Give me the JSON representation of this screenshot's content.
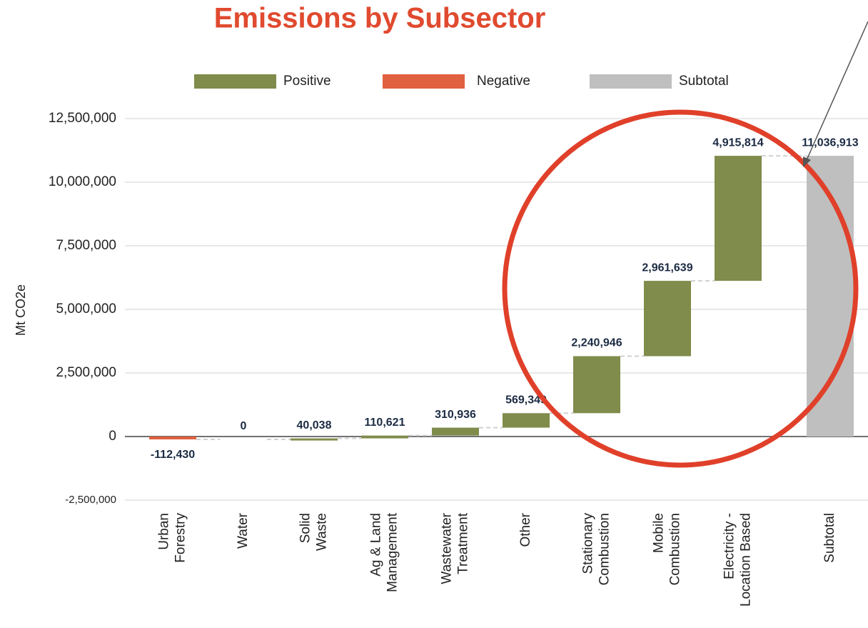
{
  "chart_data": {
    "type": "waterfall",
    "title": "Emissions by Subsector",
    "y_label": "Mt CO2e",
    "categories": [
      [
        "Urban",
        "Forestry"
      ],
      [
        "Water"
      ],
      [
        "Solid",
        "Waste"
      ],
      [
        "Ag & Land",
        "Management"
      ],
      [
        "Wastewater",
        "Treatment"
      ],
      [
        "Other"
      ],
      [
        "Stationary",
        "Combustion"
      ],
      [
        "Mobile",
        "Combustion"
      ],
      [
        "Electricity -",
        "Location Based"
      ],
      [
        "Subtotal"
      ]
    ],
    "values": [
      -112430,
      0,
      40038,
      110621,
      310936,
      569349,
      2240946,
      2961639,
      4915814,
      11036913
    ],
    "value_labels": [
      "-112,430",
      "0",
      "40,038",
      "110,621",
      "310,936",
      "569,349",
      "2,240,946",
      "2,961,639",
      "4,915,814",
      "11,036,913"
    ],
    "bar_kinds": [
      "step",
      "step",
      "step",
      "step",
      "step",
      "step",
      "step",
      "step",
      "step",
      "total"
    ],
    "legend": [
      {
        "name": "Positive",
        "color": "#7f8c4b"
      },
      {
        "name": "Negative",
        "color": "#e0603f"
      },
      {
        "name": "Subtotal",
        "color": "#bfbfbf"
      }
    ],
    "ylim": [
      -2500000,
      12500000
    ],
    "yticks": [
      {
        "value": -2500000,
        "label": "-2,500,000"
      },
      0,
      {
        "value": 2500000,
        "label": "2,500,000"
      },
      {
        "value": 5000000,
        "label": "5,000,000"
      },
      {
        "value": 7500000,
        "label": "7,500,000"
      },
      {
        "value": 10000000,
        "label": "10,000,000"
      },
      {
        "value": 12500000,
        "label": "12,500,000"
      }
    ],
    "grid": true
  }
}
